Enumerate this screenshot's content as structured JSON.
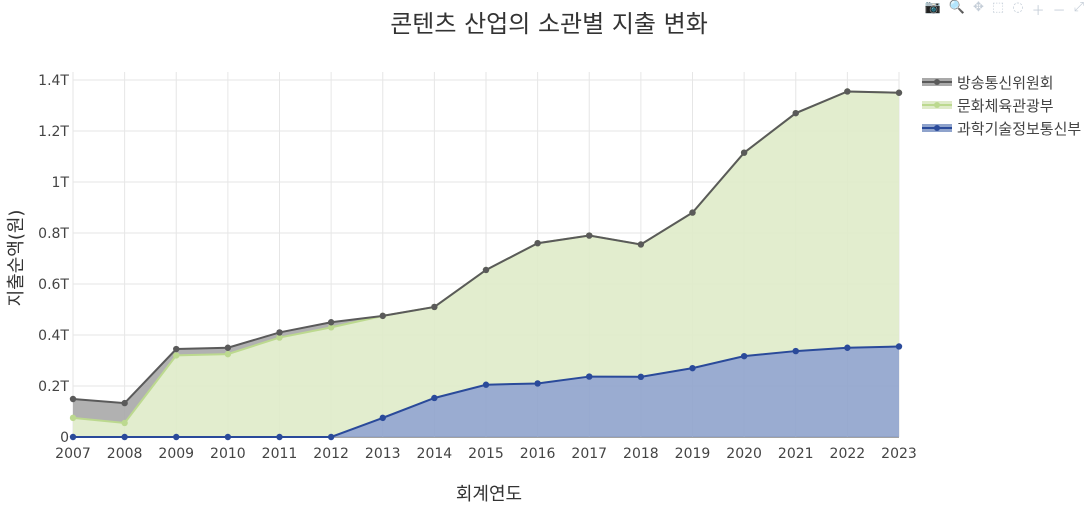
{
  "chart_data": {
    "type": "area",
    "stacked": true,
    "title": "콘텐츠 산업의 소관별 지출 변화",
    "xlabel": "회계연도",
    "ylabel": "지출순액(원)",
    "ylim": [
      0,
      1400000000000.0
    ],
    "yticks": [
      0,
      200000000000.0,
      400000000000.0,
      600000000000.0,
      800000000000.0,
      1000000000000.0,
      1200000000000.0,
      1400000000000.0
    ],
    "ytick_labels": [
      "0",
      "0.2T",
      "0.4T",
      "0.6T",
      "0.8T",
      "1T",
      "1.2T",
      "1.4T"
    ],
    "x": [
      "2007",
      "2008",
      "2009",
      "2010",
      "2011",
      "2012",
      "2013",
      "2014",
      "2015",
      "2016",
      "2017",
      "2018",
      "2019",
      "2020",
      "2021",
      "2022",
      "2023"
    ],
    "legend_position": "top-right",
    "grid": true,
    "series": [
      {
        "name": "과학기술정보통신부",
        "color": "#2a4a9a",
        "fill": "#8fa3cc",
        "values": [
          0,
          0,
          0,
          0,
          0,
          0,
          75000000000.0,
          153000000000.0,
          205000000000.0,
          210000000000.0,
          237000000000.0,
          236000000000.0,
          270000000000.0,
          317000000000.0,
          337000000000.0,
          350000000000.0,
          355000000000.0
        ]
      },
      {
        "name": "문화체육관광부",
        "color": "#bcd98f",
        "fill": "#dfebc9",
        "values": [
          75000000000.0,
          55000000000.0,
          320000000000.0,
          325000000000.0,
          390000000000.0,
          430000000000.0,
          400000000000.0,
          357000000000.0,
          450000000000.0,
          550000000000.0,
          553000000000.0,
          519000000000.0,
          610000000000.0,
          798000000000.0,
          933000000000.0,
          1005000000000.0,
          995000000000.0
        ]
      },
      {
        "name": "방송통신위원회",
        "color": "#5a5a5a",
        "fill": "#a9a9a9",
        "values": [
          74000000000.0,
          78000000000.0,
          25000000000.0,
          25000000000.0,
          20000000000.0,
          20000000000.0,
          0,
          0,
          0,
          0,
          0,
          0,
          0,
          0,
          0,
          0,
          0
        ]
      }
    ]
  },
  "legend_order": [
    "방송통신위원회",
    "문화체육관광부",
    "과학기술정보통신부"
  ]
}
